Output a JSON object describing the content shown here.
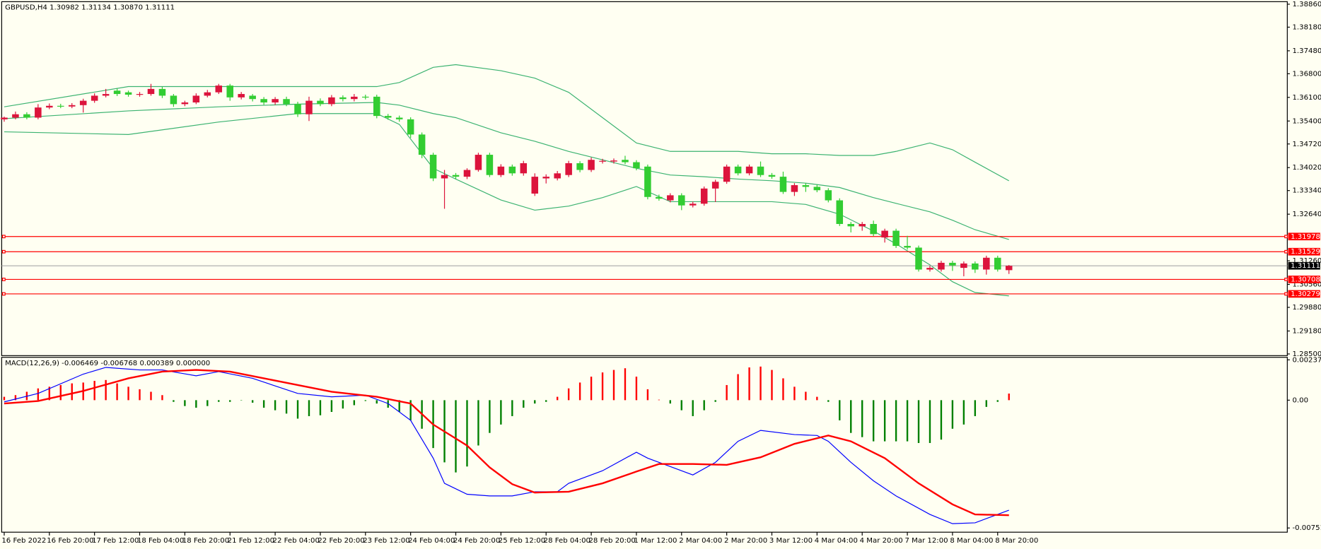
{
  "chart_data": [
    {
      "type": "candlestick",
      "title": "GBPUSD,H4  1.30982 1.31134 1.30870 1.31111",
      "categories": [
        "16 Feb 2022",
        null,
        null,
        null,
        "16 Feb 20:00",
        null,
        null,
        null,
        "17 Feb 12:00",
        null,
        null,
        null,
        "18 Feb 04:00",
        null,
        null,
        null,
        "18 Feb 20:00",
        null,
        null,
        null,
        "21 Feb 12:00",
        null,
        null,
        null,
        "22 Feb 04:00",
        null,
        null,
        null,
        "22 Feb 20:00",
        null,
        null,
        null,
        "23 Feb 12:00",
        null,
        null,
        null,
        "24 Feb 04:00",
        null,
        null,
        null,
        "24 Feb 20:00",
        null,
        null,
        null,
        "25 Feb 12:00",
        null,
        null,
        null,
        "28 Feb 04:00",
        null,
        null,
        null,
        "28 Feb 20:00",
        null,
        null,
        null,
        "1 Mar 12:00",
        null,
        null,
        null,
        "2 Mar 04:00",
        null,
        null,
        null,
        "2 Mar 20:00",
        null,
        null,
        null,
        "3 Mar 12:00",
        null,
        null,
        null,
        "4 Mar 04:00",
        null,
        null,
        null,
        "4 Mar 20:00",
        null,
        null,
        null,
        "7 Mar 12:00",
        null,
        null,
        null,
        "8 Mar 04:00",
        null,
        null,
        null,
        "8 Mar 20:00",
        null
      ],
      "ohlc": [
        [
          1.3545,
          1.3553,
          1.3538,
          1.355
        ],
        [
          1.355,
          1.3568,
          1.3545,
          1.356
        ],
        [
          1.356,
          1.3566,
          1.3545,
          1.355
        ],
        [
          1.355,
          1.359,
          1.3545,
          1.358
        ],
        [
          1.358,
          1.3592,
          1.3575,
          1.3585
        ],
        [
          1.3585,
          1.3591,
          1.3578,
          1.3583
        ],
        [
          1.3583,
          1.3593,
          1.3578,
          1.3587
        ],
        [
          1.3587,
          1.3606,
          1.3565,
          1.36
        ],
        [
          1.36,
          1.3622,
          1.3594,
          1.3615
        ],
        [
          1.3615,
          1.3635,
          1.361,
          1.362
        ],
        [
          1.363,
          1.3636,
          1.3614,
          1.362
        ],
        [
          1.3625,
          1.363,
          1.3612,
          1.3618
        ],
        [
          1.3618,
          1.3626,
          1.3612,
          1.362
        ],
        [
          1.362,
          1.365,
          1.3615,
          1.3635
        ],
        [
          1.3635,
          1.3641,
          1.3608,
          1.3615
        ],
        [
          1.3615,
          1.362,
          1.3582,
          1.359
        ],
        [
          1.359,
          1.36,
          1.3584,
          1.3595
        ],
        [
          1.3595,
          1.3622,
          1.359,
          1.3615
        ],
        [
          1.3615,
          1.3632,
          1.361,
          1.3625
        ],
        [
          1.3625,
          1.365,
          1.362,
          1.3645
        ],
        [
          1.3645,
          1.365,
          1.36,
          1.361
        ],
        [
          1.361,
          1.3626,
          1.3604,
          1.362
        ],
        [
          1.3615,
          1.362,
          1.3598,
          1.3605
        ],
        [
          1.3605,
          1.3611,
          1.3588,
          1.3595
        ],
        [
          1.3595,
          1.3611,
          1.3588,
          1.3605
        ],
        [
          1.3605,
          1.3612,
          1.3584,
          1.359
        ],
        [
          1.359,
          1.3597,
          1.3552,
          1.356
        ],
        [
          1.356,
          1.3612,
          1.354,
          1.36
        ],
        [
          1.36,
          1.3607,
          1.3584,
          1.359
        ],
        [
          1.359,
          1.3617,
          1.3584,
          1.361
        ],
        [
          1.361,
          1.3616,
          1.3598,
          1.3605
        ],
        [
          1.3605,
          1.362,
          1.3598,
          1.3612
        ],
        [
          1.3612,
          1.3618,
          1.3604,
          1.361
        ],
        [
          1.3612,
          1.3618,
          1.3548,
          1.3555
        ],
        [
          1.3555,
          1.3561,
          1.3544,
          1.355
        ],
        [
          1.355,
          1.3556,
          1.3538,
          1.3545
        ],
        [
          1.3545,
          1.3551,
          1.349,
          1.35
        ],
        [
          1.35,
          1.3506,
          1.343,
          1.344
        ],
        [
          1.344,
          1.3446,
          1.3362,
          1.337
        ],
        [
          1.337,
          1.3395,
          1.328,
          1.338
        ],
        [
          1.338,
          1.3386,
          1.3368,
          1.3375
        ],
        [
          1.3375,
          1.34,
          1.3368,
          1.3395
        ],
        [
          1.3395,
          1.3446,
          1.339,
          1.344
        ],
        [
          1.344,
          1.3446,
          1.3374,
          1.338
        ],
        [
          1.338,
          1.3412,
          1.3374,
          1.3405
        ],
        [
          1.3405,
          1.3411,
          1.3378,
          1.3385
        ],
        [
          1.3385,
          1.3422,
          1.3378,
          1.3415
        ],
        [
          1.3325,
          1.3385,
          1.3318,
          1.3375
        ],
        [
          1.337,
          1.3382,
          1.3355,
          1.3375
        ],
        [
          1.337,
          1.3392,
          1.3364,
          1.3385
        ],
        [
          1.338,
          1.3422,
          1.3374,
          1.3415
        ],
        [
          1.3415,
          1.3421,
          1.3388,
          1.3395
        ],
        [
          1.3395,
          1.3432,
          1.3389,
          1.3425
        ],
        [
          1.342,
          1.3428,
          1.3414,
          1.3422
        ],
        [
          1.342,
          1.3429,
          1.3414,
          1.3423
        ],
        [
          1.3425,
          1.3437,
          1.3412,
          1.3418
        ],
        [
          1.3418,
          1.3424,
          1.3394,
          1.34
        ],
        [
          1.3405,
          1.3411,
          1.3308,
          1.3315
        ],
        [
          1.3315,
          1.3322,
          1.3304,
          1.331
        ],
        [
          1.3305,
          1.3326,
          1.3299,
          1.332
        ],
        [
          1.332,
          1.3326,
          1.3276,
          1.329
        ],
        [
          1.329,
          1.3301,
          1.3284,
          1.3295
        ],
        [
          1.3295,
          1.3346,
          1.3289,
          1.334
        ],
        [
          1.334,
          1.3366,
          1.33,
          1.336
        ],
        [
          1.336,
          1.3411,
          1.3354,
          1.3405
        ],
        [
          1.3405,
          1.3411,
          1.3379,
          1.3385
        ],
        [
          1.3385,
          1.3411,
          1.3379,
          1.3405
        ],
        [
          1.3405,
          1.342,
          1.3374,
          1.338
        ],
        [
          1.338,
          1.3386,
          1.3369,
          1.3375
        ],
        [
          1.3375,
          1.339,
          1.3324,
          1.333
        ],
        [
          1.333,
          1.3356,
          1.3318,
          1.335
        ],
        [
          1.335,
          1.3356,
          1.333,
          1.3345
        ],
        [
          1.3345,
          1.3351,
          1.3329,
          1.3335
        ],
        [
          1.3335,
          1.3341,
          1.3299,
          1.3305
        ],
        [
          1.3305,
          1.3311,
          1.3229,
          1.3235
        ],
        [
          1.3235,
          1.3241,
          1.321,
          1.3228
        ],
        [
          1.3228,
          1.3241,
          1.3215,
          1.3235
        ],
        [
          1.3235,
          1.3245,
          1.3199,
          1.3205
        ],
        [
          1.3195,
          1.3221,
          1.318,
          1.3215
        ],
        [
          1.3215,
          1.3221,
          1.3164,
          1.317
        ],
        [
          1.317,
          1.32,
          1.3159,
          1.3165
        ],
        [
          1.3165,
          1.3171,
          1.3094,
          1.31
        ],
        [
          1.31,
          1.3111,
          1.3094,
          1.3105
        ],
        [
          1.31,
          1.3126,
          1.3094,
          1.312
        ],
        [
          1.312,
          1.3126,
          1.3096,
          1.3112
        ],
        [
          1.3105,
          1.3124,
          1.308,
          1.3118
        ],
        [
          1.3118,
          1.3124,
          1.309,
          1.31
        ],
        [
          1.31,
          1.3141,
          1.3085,
          1.3135
        ],
        [
          1.3135,
          1.3141,
          1.3094,
          1.31
        ],
        [
          1.30982,
          1.31134,
          1.3087,
          1.31111
        ]
      ],
      "up_color": "#dc143c",
      "down_color": "#32cd32",
      "ylim": [
        1.285,
        1.3886
      ],
      "yticks": [
        {
          "value": 1.3886,
          "label": "1.38860"
        },
        {
          "value": 1.3818,
          "label": "1.38180"
        },
        {
          "value": 1.3748,
          "label": "1.37480"
        },
        {
          "value": 1.368,
          "label": "1.36800"
        },
        {
          "value": 1.361,
          "label": "1.36100"
        },
        {
          "value": 1.354,
          "label": "1.35400"
        },
        {
          "value": 1.3472,
          "label": "1.34720"
        },
        {
          "value": 1.3402,
          "label": "1.34020"
        },
        {
          "value": 1.3334,
          "label": "1.33340"
        },
        {
          "value": 1.3264,
          "label": "1.32640"
        },
        {
          "value": 1.3126,
          "label": "1.31260"
        },
        {
          "value": 1.3056,
          "label": "1.30560"
        },
        {
          "value": 1.2988,
          "label": "1.29880"
        },
        {
          "value": 1.2918,
          "label": "1.29180"
        },
        {
          "value": 1.285,
          "label": "1.28500"
        }
      ],
      "bands": [
        {
          "color": "#3cb371",
          "x": [
            0,
            11,
            19,
            26,
            33,
            35,
            38,
            40,
            44,
            47,
            50,
            53,
            56,
            59,
            62,
            65,
            68,
            71,
            74,
            77,
            79,
            82,
            84,
            86,
            89
          ],
          "values": [
            1.3582,
            1.3642,
            1.3642,
            1.3642,
            1.3642,
            1.3654,
            1.3699,
            1.3707,
            1.3689,
            1.3667,
            1.3625,
            1.355,
            1.3475,
            1.345,
            1.345,
            1.345,
            1.3443,
            1.3443,
            1.3438,
            1.3438,
            1.345,
            1.3475,
            1.3455,
            1.3418,
            1.3363
          ]
        },
        {
          "color": "#3cb371",
          "x": [
            0,
            11,
            19,
            26,
            33,
            35,
            38,
            40,
            44,
            47,
            50,
            53,
            56,
            59,
            62,
            65,
            68,
            71,
            74,
            77,
            79,
            82,
            84,
            86,
            89
          ],
          "values": [
            1.3547,
            1.357,
            1.3582,
            1.359,
            1.3595,
            1.3587,
            1.3562,
            1.355,
            1.3505,
            1.348,
            1.345,
            1.3425,
            1.34,
            1.338,
            1.3375,
            1.3368,
            1.3363,
            1.3356,
            1.3343,
            1.3313,
            1.3296,
            1.3271,
            1.3246,
            1.3218,
            1.3189
          ]
        },
        {
          "color": "#3cb371",
          "x": [
            0,
            11,
            19,
            26,
            33,
            35,
            38,
            40,
            44,
            47,
            50,
            53,
            56,
            59,
            62,
            65,
            68,
            71,
            74,
            77,
            79,
            82,
            84,
            86,
            89
          ],
          "values": [
            1.3508,
            1.35,
            1.3537,
            1.3562,
            1.3562,
            1.353,
            1.34,
            1.3368,
            1.3306,
            1.3276,
            1.3288,
            1.3313,
            1.3346,
            1.3301,
            1.3301,
            1.3301,
            1.3301,
            1.3293,
            1.3264,
            1.3214,
            1.3176,
            1.3114,
            1.3064,
            1.3032,
            1.3022
          ]
        }
      ],
      "levels": [
        {
          "value": 1.31978,
          "color": "#ff0000"
        },
        {
          "value": 1.31529,
          "color": "#ff0000"
        },
        {
          "value": 1.30708,
          "color": "#ff0000"
        },
        {
          "value": 1.30279,
          "color": "#ff0000"
        }
      ],
      "current_price": {
        "value": 1.31111,
        "color": "#a9a9a9",
        "tag_color": "#000000"
      }
    },
    {
      "type": "macd",
      "title": "MACD(12,26,9) -0.006469 -0.006768 0.000389 0.000000",
      "histogram": {
        "up_color": "#ff0000",
        "down_color": "#008000",
        "values": [
          0.000198,
          0.000296,
          0.000494,
          0.000692,
          0.00079,
          0.000889,
          0.000988,
          0.001037,
          0.001136,
          0.001186,
          0.000988,
          0.00079,
          0.000642,
          0.000494,
          0.000296,
          -9.9e-05,
          -0.000346,
          -0.000445,
          -0.000346,
          -9.9e-05,
          -9.9e-05,
          -2e-05,
          -0.000148,
          -0.000445,
          -0.000593,
          -0.00079,
          -0.001087,
          -0.000939,
          -0.000889,
          -0.000692,
          -0.000494,
          -0.000296,
          -4.9e-05,
          -0.000198,
          -0.000445,
          -0.000692,
          -0.001186,
          -0.00168,
          -0.002816,
          -0.003656,
          -0.004248,
          -0.003903,
          -0.002668,
          -0.001927,
          -0.001433,
          -0.000939,
          -0.000445,
          -0.000198,
          -9.9e-05,
          0.000198,
          0.000692,
          0.001037,
          0.001383,
          0.00163,
          0.001778,
          0.001877,
          0.001383,
          0.000642,
          3e-05,
          -0.000198,
          -0.000593,
          -0.000939,
          -0.000593,
          -9.9e-05,
          0.000889,
          0.001531,
          0.001927,
          0.001976,
          0.001778,
          0.001284,
          0.00079,
          0.000494,
          0.000198,
          -9.9e-05,
          -0.001186,
          -0.001927,
          -0.002174,
          -0.002421,
          -0.002421,
          -0.002421,
          -0.002421,
          -0.002519,
          -0.002519,
          -0.002322,
          -0.00168,
          -0.001433,
          -0.000939,
          -0.000395,
          -9.9e-05,
          0.000389
        ]
      },
      "series": [
        {
          "color": "#0000ff",
          "width": 1,
          "x": [
            0,
            3,
            7,
            9,
            12,
            14,
            17,
            19,
            22,
            26,
            29,
            32,
            34,
            36,
            38,
            39,
            41,
            43,
            45,
            47,
            49,
            50,
            53,
            56,
            57,
            59,
            61,
            63,
            65,
            67,
            70,
            72,
            73,
            75,
            77,
            79,
            82,
            84,
            86,
            89
          ],
          "values": [
            -9.9e-05,
            0.000395,
            0.001531,
            0.001927,
            0.001778,
            0.001778,
            0.001433,
            0.00168,
            0.001284,
            0.000395,
            0.000198,
            0.000296,
            -0.000198,
            -0.001186,
            -0.003409,
            -0.004891,
            -0.005533,
            -0.005632,
            -0.005632,
            -0.005385,
            -0.005385,
            -0.004891,
            -0.00415,
            -0.003063,
            -0.003409,
            -0.003903,
            -0.004397,
            -0.003656,
            -0.002421,
            -0.001778,
            -0.002025,
            -0.002075,
            -0.002421,
            -0.003656,
            -0.004742,
            -0.005632,
            -0.006718,
            -0.007262,
            -0.007212,
            -0.006469
          ]
        },
        {
          "color": "#ff0000",
          "width": 2,
          "x": [
            0,
            3,
            7,
            11,
            14,
            17,
            20,
            23,
            26,
            29,
            33,
            36,
            38,
            41,
            43,
            45,
            47,
            50,
            53,
            56,
            58,
            61,
            64,
            67,
            70,
            73,
            75,
            78,
            81,
            84,
            86,
            89
          ],
          "values": [
            -0.000198,
            -4.9e-05,
            0.000543,
            0.001284,
            0.00168,
            0.001778,
            0.00168,
            0.001284,
            0.000889,
            0.000494,
            0.000198,
            -0.000198,
            -0.001433,
            -0.002668,
            -0.003952,
            -0.00494,
            -0.005434,
            -0.005385,
            -0.004891,
            -0.004199,
            -0.003754,
            -0.003754,
            -0.003804,
            -0.00336,
            -0.002569,
            -0.002075,
            -0.002421,
            -0.003409,
            -0.004891,
            -0.006126,
            -0.006718,
            -0.006768
          ]
        }
      ],
      "ylim": [
        -0.007517,
        0.002372
      ],
      "yticks": [
        0.002372,
        {
          "value": 0,
          "label": "0.00"
        },
        -0.007517
      ]
    }
  ]
}
